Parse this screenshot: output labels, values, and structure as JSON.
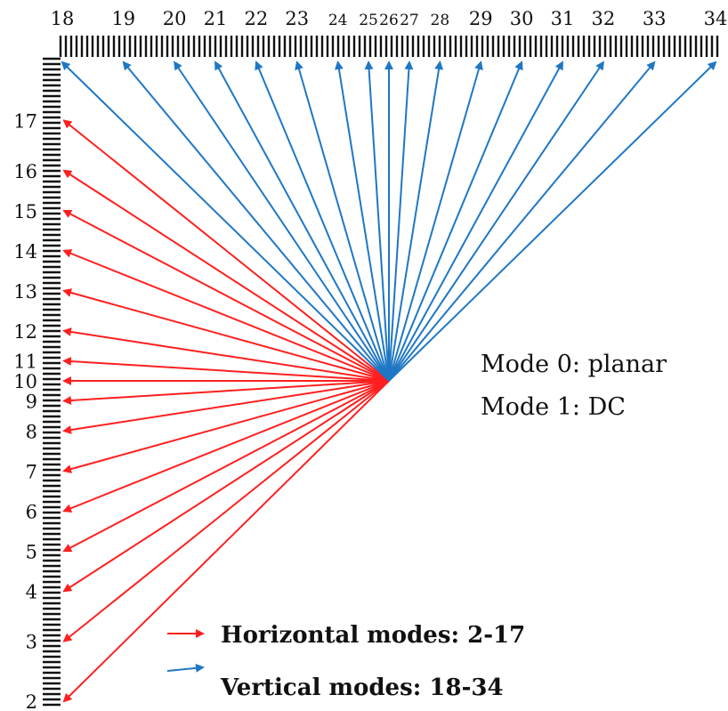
{
  "colors": {
    "horizontal": "#ff1f1f",
    "vertical": "#1f77c4",
    "ruler": "#111111"
  },
  "modes": {
    "horizontal": [
      {
        "label": "2",
        "dy": 32
      },
      {
        "label": "3",
        "dy": 26
      },
      {
        "label": "4",
        "dy": 21
      },
      {
        "label": "5",
        "dy": 17
      },
      {
        "label": "6",
        "dy": 13
      },
      {
        "label": "7",
        "dy": 9
      },
      {
        "label": "8",
        "dy": 5
      },
      {
        "label": "9",
        "dy": 2
      },
      {
        "label": "10",
        "dy": 0
      },
      {
        "label": "11",
        "dy": -2
      },
      {
        "label": "12",
        "dy": -5
      },
      {
        "label": "13",
        "dy": -9
      },
      {
        "label": "14",
        "dy": -13
      },
      {
        "label": "15",
        "dy": -17
      },
      {
        "label": "16",
        "dy": -21
      },
      {
        "label": "17",
        "dy": -26
      }
    ],
    "vertical": [
      {
        "label": "18",
        "dx": -32
      },
      {
        "label": "19",
        "dx": -26
      },
      {
        "label": "20",
        "dx": -21
      },
      {
        "label": "21",
        "dx": -17
      },
      {
        "label": "22",
        "dx": -13
      },
      {
        "label": "23",
        "dx": -9
      },
      {
        "label": "24",
        "dx": -5
      },
      {
        "label": "25",
        "dx": -2
      },
      {
        "label": "26",
        "dx": 0
      },
      {
        "label": "27",
        "dx": 2
      },
      {
        "label": "28",
        "dx": 5
      },
      {
        "label": "29",
        "dx": 9
      },
      {
        "label": "30",
        "dx": 13
      },
      {
        "label": "31",
        "dx": 17
      },
      {
        "label": "32",
        "dx": 21
      },
      {
        "label": "33",
        "dx": 26
      },
      {
        "label": "34",
        "dx": 32
      }
    ]
  },
  "notes": {
    "planar": "Mode 0: planar",
    "dc": "Mode 1: DC"
  },
  "legend": {
    "horizontal": "Horizontal modes: 2-17",
    "vertical": "Vertical modes: 18-34"
  }
}
